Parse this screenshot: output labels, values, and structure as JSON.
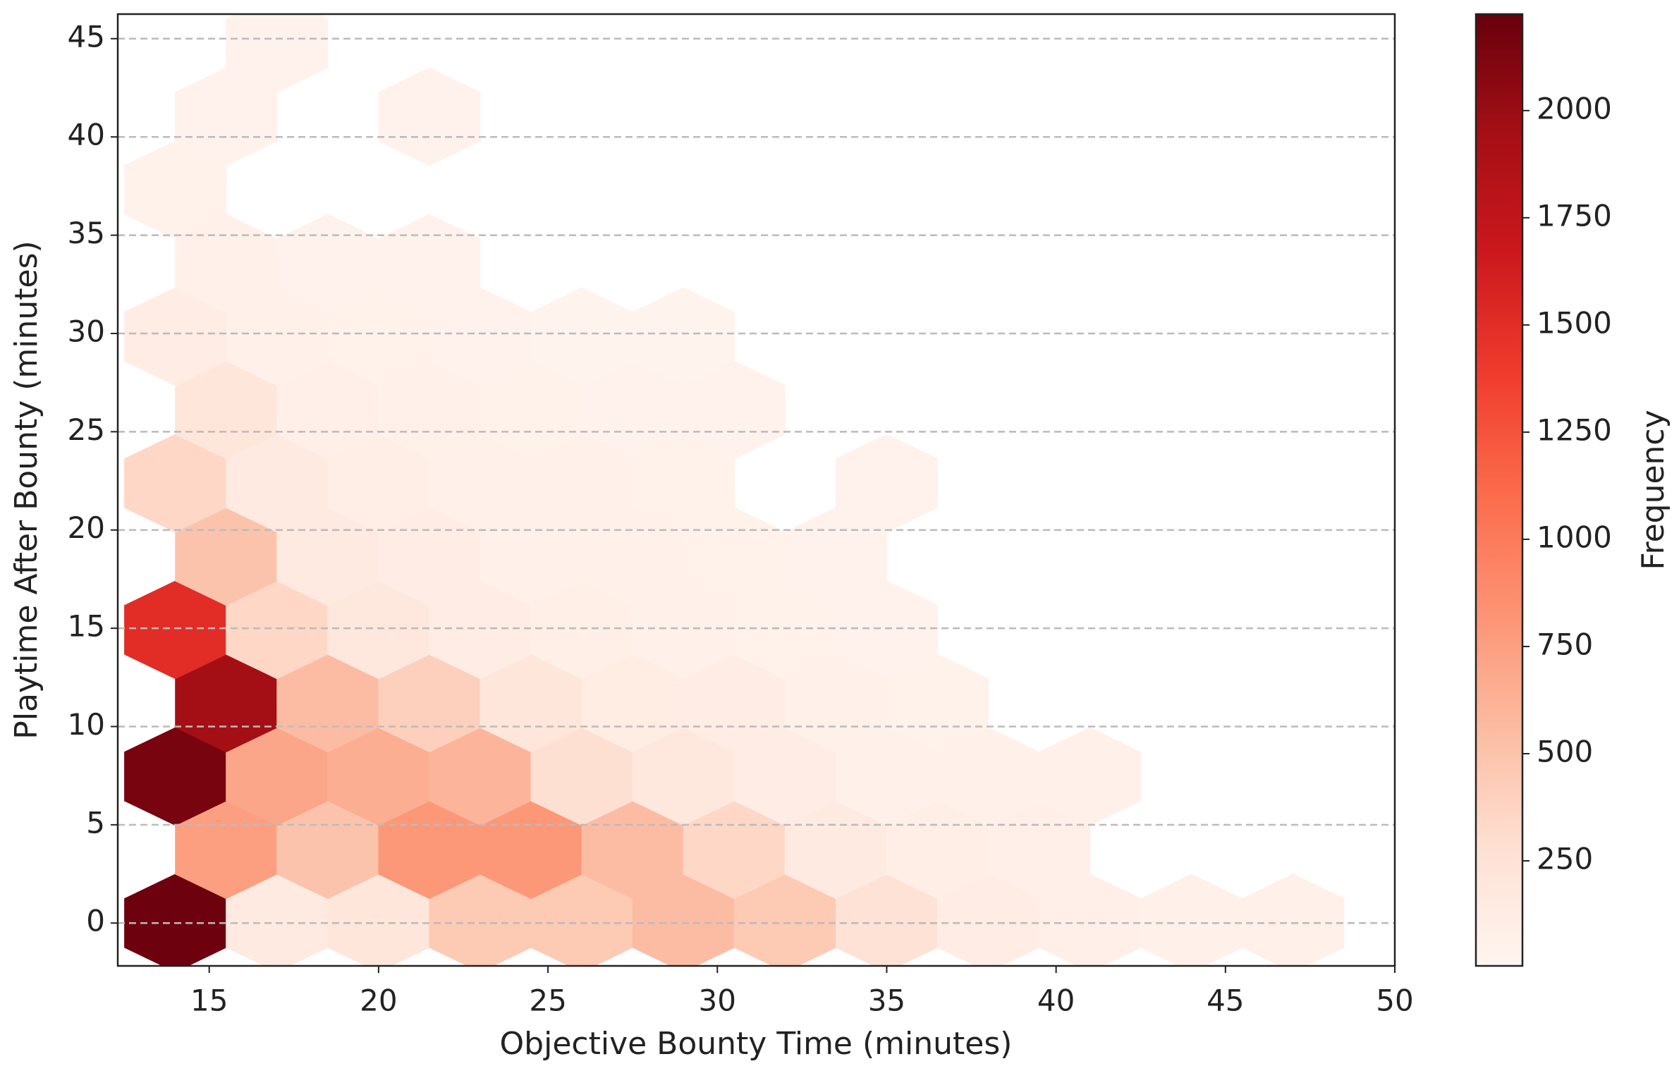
{
  "chart_data": {
    "type": "hexbin",
    "x_label": "Objective Bounty Time (minutes)",
    "y_label": "Playtime After Bounty (minutes)",
    "colorbar_label": "Frequency",
    "cmap": "Reds",
    "x": [
      14,
      17,
      20,
      23,
      26,
      29,
      32,
      35,
      38,
      41,
      44,
      47,
      15.5,
      18.5,
      21.5,
      24.5,
      27.5,
      30.5,
      33.5,
      36.5,
      39.5,
      14,
      17,
      20,
      23,
      26,
      29,
      32,
      35,
      38,
      41,
      15.5,
      18.5,
      21.5,
      24.5,
      27.5,
      30.5,
      33.5,
      36.5,
      14,
      17,
      20,
      23,
      26,
      29,
      32,
      35,
      15.5,
      18.5,
      21.5,
      24.5,
      27.5,
      30.5,
      33.5,
      14,
      17,
      20,
      23,
      26,
      29,
      35,
      15.5,
      18.5,
      21.5,
      24.5,
      27.5,
      30.5,
      14,
      17,
      20,
      23,
      26,
      29,
      15.5,
      18.5,
      21.5,
      14,
      15.5,
      21.5,
      17
    ],
    "y": [
      0,
      0,
      0,
      0,
      0,
      0,
      0,
      0,
      0,
      0,
      0,
      0,
      3.73,
      3.73,
      3.73,
      3.73,
      3.73,
      3.73,
      3.73,
      3.73,
      3.73,
      7.46,
      7.46,
      7.46,
      7.46,
      7.46,
      7.46,
      7.46,
      7.46,
      7.46,
      7.46,
      11.19,
      11.19,
      11.19,
      11.19,
      11.19,
      11.19,
      11.19,
      11.19,
      14.92,
      14.92,
      14.92,
      14.92,
      14.92,
      14.92,
      14.92,
      14.92,
      18.65,
      18.65,
      18.65,
      18.65,
      18.65,
      18.65,
      18.65,
      22.38,
      22.38,
      22.38,
      22.38,
      22.38,
      22.38,
      22.38,
      26.11,
      26.11,
      26.11,
      26.11,
      26.11,
      26.11,
      29.84,
      29.84,
      29.84,
      29.84,
      29.84,
      29.84,
      33.57,
      33.57,
      33.57,
      37.3,
      41.03,
      41.03,
      44.76
    ],
    "values": [
      2200,
      150,
      200,
      450,
      450,
      550,
      450,
      250,
      120,
      80,
      60,
      70,
      750,
      500,
      800,
      800,
      550,
      350,
      150,
      100,
      80,
      2150,
      700,
      650,
      600,
      280,
      180,
      120,
      70,
      60,
      60,
      1950,
      550,
      400,
      200,
      130,
      110,
      70,
      50,
      1500,
      350,
      180,
      110,
      90,
      70,
      50,
      40,
      500,
      150,
      120,
      70,
      60,
      50,
      40,
      350,
      150,
      100,
      70,
      60,
      50,
      40,
      200,
      80,
      60,
      50,
      45,
      40,
      120,
      60,
      50,
      40,
      35,
      30,
      60,
      40,
      40,
      50,
      40,
      45,
      40
    ],
    "xlim": [
      12.3,
      50
    ],
    "ylim": [
      -2.18,
      46.25
    ],
    "xticks": [
      15,
      20,
      25,
      30,
      35,
      40,
      45,
      50
    ],
    "yticks": [
      0,
      5,
      10,
      15,
      20,
      25,
      30,
      35,
      40,
      45
    ],
    "colorbar_lim": [
      5,
      2225
    ],
    "colorbar_ticks": [
      250,
      500,
      750,
      1000,
      1250,
      1500,
      1750,
      2000
    ],
    "grid": "y"
  }
}
